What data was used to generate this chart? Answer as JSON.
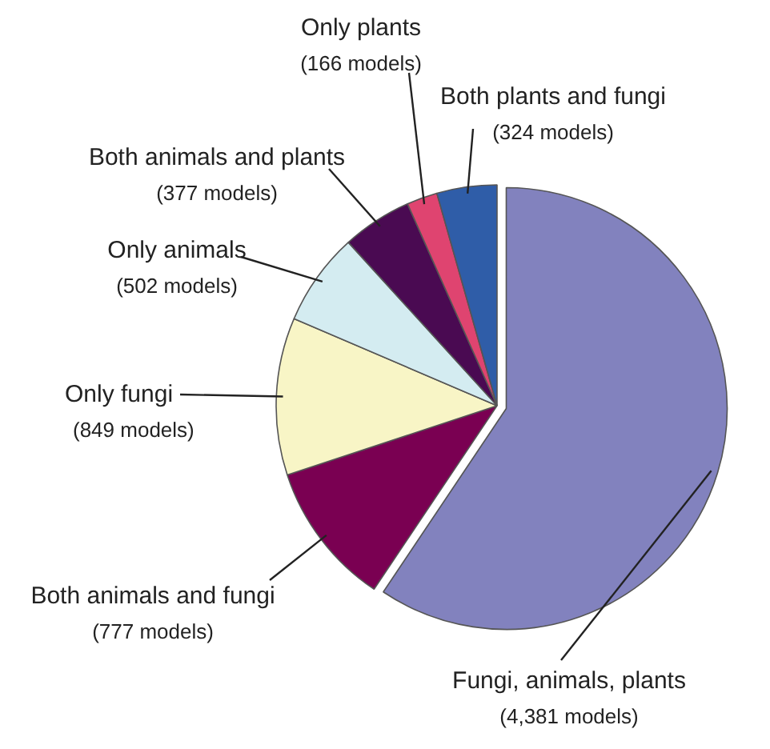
{
  "chart_data": {
    "type": "pie",
    "categories": [
      "Fungi, animals, plants",
      "Both animals and fungi",
      "Only fungi",
      "Only animals",
      "Both animals and plants",
      "Only plants",
      "Both plants and fungi"
    ],
    "values": [
      4381,
      777,
      849,
      502,
      377,
      166,
      324
    ],
    "value_labels": [
      "(4,381 models)",
      "(777 models)",
      "(849 models)",
      "(502 models)",
      "(377 models)",
      "(166 models)",
      "(324 models)"
    ],
    "colors": [
      "#8282be",
      "#7a0052",
      "#f8f5c6",
      "#d4ecf1",
      "#4a0a52",
      "#df4470",
      "#2f5da8"
    ]
  }
}
